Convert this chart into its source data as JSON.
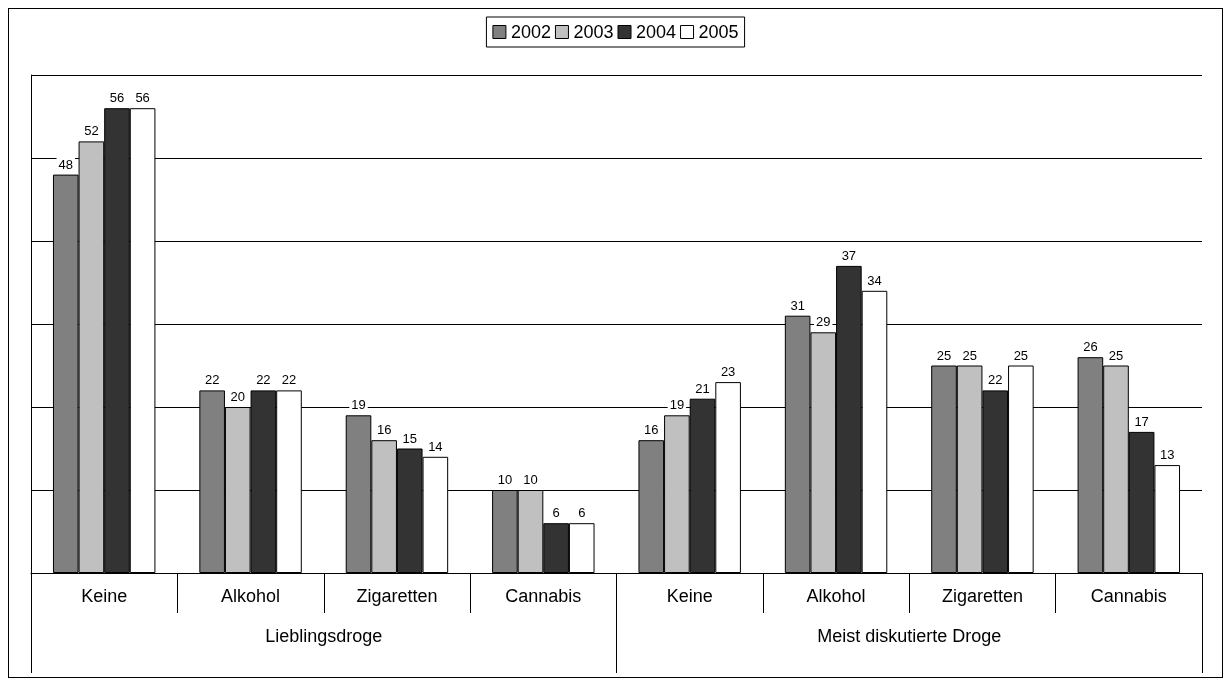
{
  "chart_data": {
    "type": "bar",
    "categories": [
      "Keine",
      "Alkohol",
      "Zigaretten",
      "Cannabis",
      "Keine",
      "Alkohol",
      "Zigaretten",
      "Cannabis"
    ],
    "series": [
      {
        "name": "2002",
        "color": "#808080",
        "values": [
          48,
          22,
          19,
          10,
          16,
          31,
          25,
          26
        ]
      },
      {
        "name": "2003",
        "color": "#c0c0c0",
        "values": [
          52,
          20,
          16,
          10,
          19,
          29,
          25,
          25
        ]
      },
      {
        "name": "2004",
        "color": "#333333",
        "values": [
          56,
          22,
          15,
          6,
          21,
          37,
          22,
          17
        ]
      },
      {
        "name": "2005",
        "color": "#ffffff",
        "values": [
          56,
          22,
          14,
          6,
          23,
          34,
          25,
          13
        ]
      }
    ],
    "annotations": [
      "Lieblingsdroge",
      "Meist diskutierte Droge"
    ],
    "ylim": [
      0,
      60
    ],
    "yticks": [
      {
        "value": 0,
        "label": null
      },
      {
        "value": 10,
        "label": null
      },
      {
        "value": 20,
        "label": null
      },
      {
        "value": 30,
        "label": null
      },
      {
        "value": 40,
        "label": null
      },
      {
        "value": 50,
        "label": null
      },
      {
        "value": 60,
        "label": null
      }
    ],
    "tick_labels": "x",
    "grid": "y",
    "legend": "top",
    "data_labels": true
  }
}
